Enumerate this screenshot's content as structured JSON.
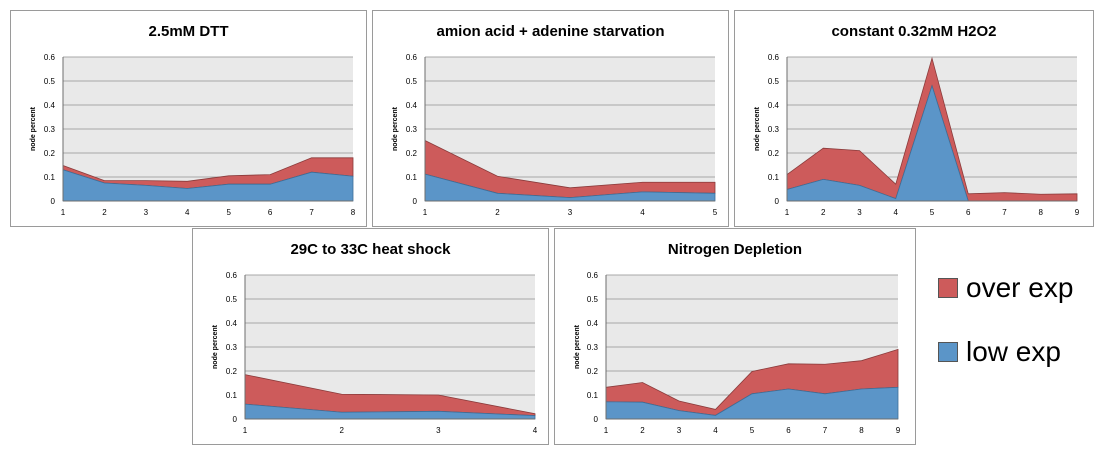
{
  "legend": {
    "over_label": "over exp",
    "low_label": "low exp",
    "over_color": "#cd5b5b",
    "low_color": "#5b95c8"
  },
  "chart_data": [
    {
      "type": "area",
      "title": "2.5mM DTT",
      "ylabel": "node percent",
      "ylim": [
        0,
        0.6
      ],
      "yticks": [
        "0",
        "0.1",
        "0.2",
        "0.3",
        "0.4",
        "0.5",
        "0.6"
      ],
      "x": [
        "1",
        "2",
        "3",
        "4",
        "5",
        "6",
        "7",
        "8"
      ],
      "series": [
        {
          "name": "low exp",
          "values": [
            0.13,
            0.075,
            0.065,
            0.052,
            0.07,
            0.07,
            0.12,
            0.103
          ]
        },
        {
          "name": "over exp",
          "values": [
            0.018,
            0.01,
            0.02,
            0.03,
            0.035,
            0.04,
            0.06,
            0.077
          ]
        }
      ]
    },
    {
      "type": "area",
      "title": "amion acid + adenine starvation",
      "ylabel": "node percent",
      "ylim": [
        0,
        0.6
      ],
      "yticks": [
        "0",
        "0.1",
        "0.2",
        "0.3",
        "0.4",
        "0.5",
        "0.6"
      ],
      "x": [
        "1",
        "2",
        "3",
        "4",
        "5"
      ],
      "series": [
        {
          "name": "low exp",
          "values": [
            0.112,
            0.032,
            0.014,
            0.038,
            0.032
          ]
        },
        {
          "name": "over exp",
          "values": [
            0.14,
            0.071,
            0.041,
            0.04,
            0.046
          ]
        }
      ]
    },
    {
      "type": "area",
      "title": "constant 0.32mM H2O2",
      "ylabel": "node percent",
      "ylim": [
        0,
        0.6
      ],
      "yticks": [
        "0",
        "0.1",
        "0.2",
        "0.3",
        "0.4",
        "0.5",
        "0.6"
      ],
      "x": [
        "1",
        "2",
        "3",
        "4",
        "5",
        "6",
        "7",
        "8",
        "9"
      ],
      "series": [
        {
          "name": "low exp",
          "values": [
            0.048,
            0.09,
            0.065,
            0.01,
            0.48,
            0.0,
            0.0,
            0.0,
            0.0
          ]
        },
        {
          "name": "over exp",
          "values": [
            0.062,
            0.13,
            0.145,
            0.06,
            0.115,
            0.03,
            0.035,
            0.028,
            0.03
          ]
        }
      ]
    },
    {
      "type": "area",
      "title": "29C to 33C heat shock",
      "ylabel": "node percent",
      "ylim": [
        0,
        0.6
      ],
      "yticks": [
        "0",
        "0.1",
        "0.2",
        "0.3",
        "0.4",
        "0.5",
        "0.6"
      ],
      "x": [
        "1",
        "2",
        "3",
        "4"
      ],
      "series": [
        {
          "name": "low exp",
          "values": [
            0.062,
            0.028,
            0.032,
            0.014
          ]
        },
        {
          "name": "over exp",
          "values": [
            0.123,
            0.075,
            0.068,
            0.008
          ]
        }
      ]
    },
    {
      "type": "area",
      "title": "Nitrogen Depletion",
      "ylabel": "node percent",
      "ylim": [
        0,
        0.6
      ],
      "yticks": [
        "0",
        "0.1",
        "0.2",
        "0.3",
        "0.4",
        "0.5",
        "0.6"
      ],
      "x": [
        "1",
        "2",
        "3",
        "4",
        "5",
        "6",
        "7",
        "8",
        "9"
      ],
      "series": [
        {
          "name": "low exp",
          "values": [
            0.072,
            0.07,
            0.035,
            0.015,
            0.105,
            0.125,
            0.105,
            0.125,
            0.132
          ]
        },
        {
          "name": "over exp",
          "values": [
            0.06,
            0.082,
            0.04,
            0.025,
            0.093,
            0.105,
            0.123,
            0.118,
            0.158
          ]
        }
      ]
    }
  ]
}
